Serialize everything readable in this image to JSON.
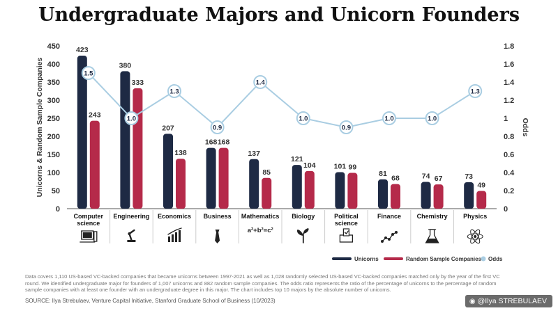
{
  "title": "Undergraduate Majors and  Unicorn Founders",
  "chart_data": {
    "type": "bar",
    "title": "Undergraduate Majors and  Unicorn Founders",
    "categories": [
      "Computer science",
      "Engineering",
      "Economics",
      "Business",
      "Mathematics",
      "Biology",
      "Political science",
      "Finance",
      "Chemistry",
      "Physics"
    ],
    "category_lines": [
      [
        "Computer",
        "science"
      ],
      [
        "Engineering"
      ],
      [
        "Economics"
      ],
      [
        "Business"
      ],
      [
        "Mathematics"
      ],
      [
        "Biology"
      ],
      [
        "Political",
        "science"
      ],
      [
        "Finance"
      ],
      [
        "Chemistry"
      ],
      [
        "Physics"
      ]
    ],
    "category_icons": [
      "computer-icon",
      "robot-arm-icon",
      "bar-chart-icon",
      "tie-icon",
      "formula-icon",
      "plant-icon",
      "ballot-box-icon",
      "line-graph-icon",
      "flask-icon",
      "atom-icon"
    ],
    "formula_text": "a²+b²=c²",
    "series": [
      {
        "name": "Unicorns",
        "color": "#1e2a44",
        "values": [
          423,
          380,
          207,
          168,
          137,
          121,
          101,
          81,
          74,
          73
        ]
      },
      {
        "name": "Random Sample Companies",
        "color": "#b52a4a",
        "values": [
          243,
          333,
          138,
          168,
          85,
          104,
          99,
          68,
          67,
          49
        ]
      }
    ],
    "odds": {
      "name": "Odds",
      "color": "#a9cde2",
      "values": [
        1.5,
        1.0,
        1.3,
        0.9,
        1.4,
        1.0,
        0.9,
        1.0,
        1.0,
        1.3
      ],
      "labels": [
        "1.5",
        "1.0",
        "1.3",
        "0.9",
        "1.4",
        "1.0",
        "0.9",
        "1.0",
        "1.0",
        "1.3"
      ]
    },
    "ylabel": "Unicorns & Random Sample Companies",
    "y2label": "Odds",
    "ylim": [
      0,
      450
    ],
    "yticks": [
      0,
      50,
      100,
      150,
      200,
      250,
      300,
      350,
      400,
      450
    ],
    "y2lim": [
      0,
      1.8
    ],
    "y2ticks": [
      0,
      0.2,
      0.4,
      0.6,
      0.8,
      1,
      1.2,
      1.4,
      1.6,
      1.8
    ],
    "y2tick_labels": [
      "0",
      "0.2",
      "0.4",
      "0.6",
      "0.8",
      "1",
      "1.2",
      "1.4",
      "1.6",
      "1.8"
    ],
    "legend_position": "bottom-right"
  },
  "footnote": "Data covers 1,110 US-based VC-backed companies that became unicorns between 1997-2021 as well as 1,028 randomly selected US-based VC-backed companies matched only by the year of the first VC round. We identified undergraduate major for founders of 1,007 unicorns and 882 random sample companies. The odds ratio represents the ratio of the percentage of unicorns to the percentage of random sample companies with at least one founder with an undergraduate degree in this major. The chart includes top 10 majors by the absolute number of unicorns.",
  "source": "SOURCE: Ilya Strebulaev, Venture Capital Initiative, Stanford Graduate School of Business (10/2023)",
  "credit": "@Ilya STREBULAEV"
}
